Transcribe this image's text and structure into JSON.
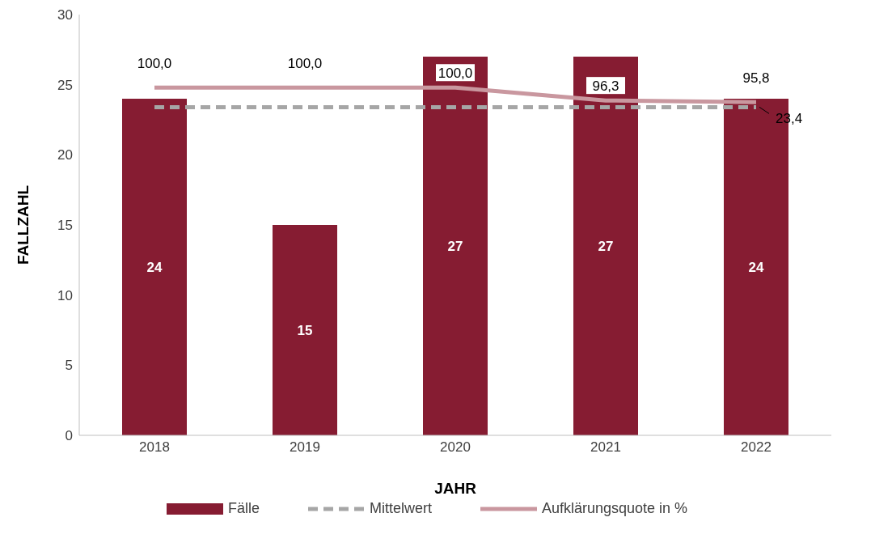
{
  "chart_data": {
    "type": "bar",
    "xlabel": "JAHR",
    "ylabel": "FALLZAHL",
    "categories": [
      "2018",
      "2019",
      "2020",
      "2021",
      "2022"
    ],
    "series": [
      {
        "name": "Fälle",
        "color": "#861c32",
        "values": [
          24,
          15,
          27,
          27,
          24
        ],
        "value_labels": [
          "24",
          "15",
          "27",
          "27",
          "24"
        ]
      },
      {
        "name": "Mittelwert",
        "type": "line",
        "color": "#a6a6a6",
        "line_style": "dashed",
        "values": [
          23.4,
          23.4,
          23.4,
          23.4,
          23.4
        ],
        "value_labels": [
          null,
          null,
          null,
          null,
          "23,4"
        ]
      },
      {
        "name": "Aufklärungsquote in %",
        "type": "line",
        "axis": "y2",
        "color": "#c9979f",
        "line_style": "solid",
        "values": [
          100,
          100,
          100,
          96.3,
          95.8
        ],
        "value_labels": [
          "100,0",
          "100,0",
          "100,0",
          "96,3",
          "95,8"
        ]
      }
    ],
    "ylim": [
      0,
      30
    ],
    "yticks": [
      0,
      5,
      10,
      15,
      20,
      25,
      30
    ],
    "y2lim": [
      0,
      121
    ],
    "tick_labels": "xy",
    "marker": "none",
    "grid": false,
    "legend": "bottom"
  }
}
